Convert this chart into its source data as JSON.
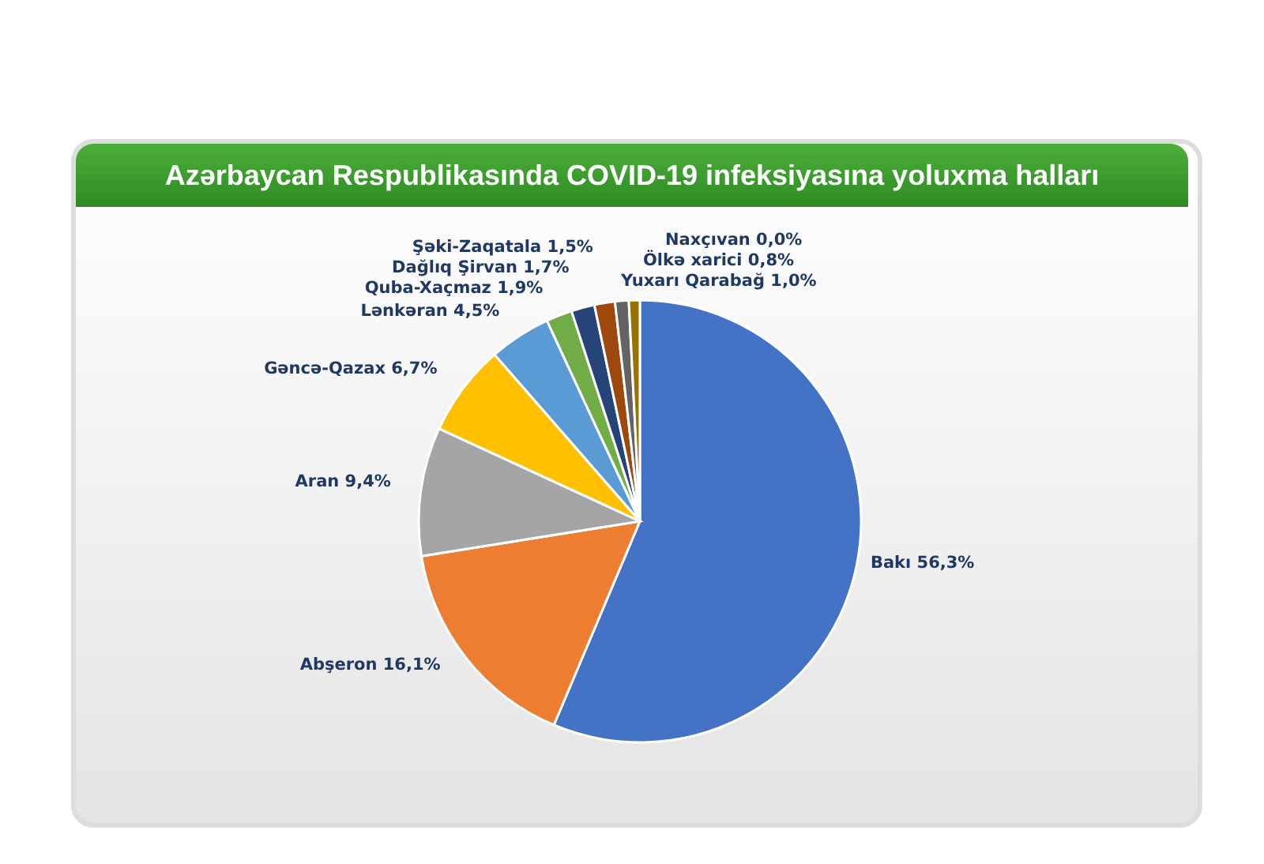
{
  "chart_data": {
    "type": "pie",
    "title": "Azərbaycan Respublikasında COVID-19 infeksiyasına yoluxma halları",
    "categories": [
      "Bakı",
      "Abşeron",
      "Aran",
      "Gəncə-Qazax",
      "Lənkəran",
      "Quba-Xaçmaz",
      "Dağlıq Şirvan",
      "Şəki-Zaqatala",
      "Yuxarı Qarabağ",
      "Ölkə xarici",
      "Naxçıvan"
    ],
    "values": [
      56.3,
      16.1,
      9.4,
      6.7,
      4.5,
      1.9,
      1.7,
      1.5,
      1.0,
      0.8,
      0.0
    ],
    "value_labels": [
      "56,3%",
      "16,1%",
      "9,4%",
      "6,7%",
      "4,5%",
      "1,9%",
      "1,7%",
      "1,5%",
      "1,0%",
      "0,8%",
      "0,0%"
    ],
    "colors": [
      "#4472c4",
      "#ed7d31",
      "#a5a5a5",
      "#ffc000",
      "#5b9bd5",
      "#70ad47",
      "#264478",
      "#9e480e",
      "#636363",
      "#997300",
      "#255e91"
    ]
  }
}
